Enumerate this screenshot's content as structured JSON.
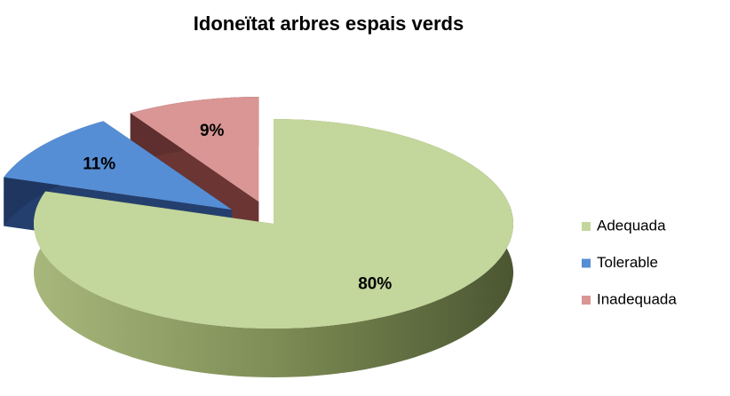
{
  "chart_data": {
    "type": "pie",
    "title": "Idoneïtat arbres espais verds",
    "categories": [
      "Adequada",
      "Tolerable",
      "Inadequada"
    ],
    "values": [
      80,
      11,
      9
    ],
    "value_labels": [
      "80%",
      "11%",
      "9%"
    ],
    "colors": [
      "#c3d69b",
      "#558ed5",
      "#d99694"
    ],
    "legend": "right"
  }
}
